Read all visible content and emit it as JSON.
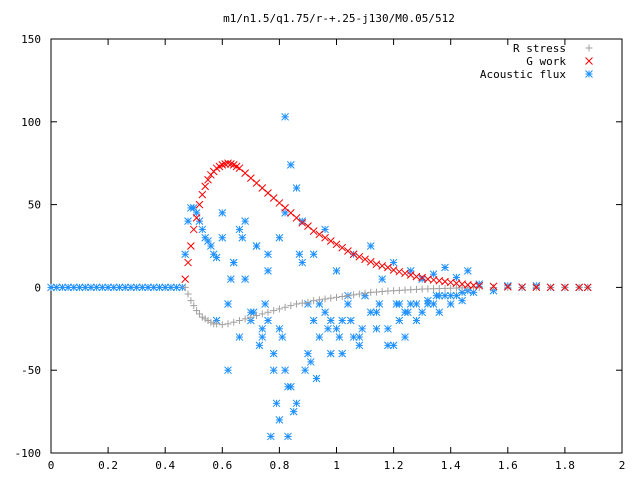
{
  "chart_data": {
    "type": "scatter",
    "title": "m1/n1.5/q1.75/r-+.25-j130/M0.05/512",
    "xlabel": "",
    "ylabel": "",
    "xlim": [
      0,
      2
    ],
    "ylim": [
      -100,
      150
    ],
    "x_ticks": [
      "0",
      "0.2",
      "0.4",
      "0.6",
      "0.8",
      "1",
      "1.2",
      "1.4",
      "1.6",
      "1.8",
      "2"
    ],
    "x_tick_values": [
      0,
      0.2,
      0.4,
      0.6,
      0.8,
      1,
      1.2,
      1.4,
      1.6,
      1.8,
      2
    ],
    "y_ticks": [
      "-100",
      "-50",
      "0",
      "50",
      "100",
      "150"
    ],
    "y_tick_values": [
      -100,
      -50,
      0,
      50,
      100,
      150
    ],
    "grid": false,
    "legend_position": "top-right",
    "series": [
      {
        "name": "R stress",
        "marker": "plus",
        "color": "#a0a0a0",
        "x": [
          0.47,
          0.48,
          0.49,
          0.5,
          0.51,
          0.52,
          0.53,
          0.54,
          0.55,
          0.56,
          0.57,
          0.58,
          0.6,
          0.62,
          0.64,
          0.66,
          0.68,
          0.7,
          0.72,
          0.74,
          0.76,
          0.78,
          0.8,
          0.82,
          0.84,
          0.86,
          0.88,
          0.9,
          0.92,
          0.94,
          0.96,
          0.98,
          1.0,
          1.02,
          1.04,
          1.06,
          1.08,
          1.1,
          1.12,
          1.14,
          1.16,
          1.18,
          1.2,
          1.22,
          1.24,
          1.26,
          1.28,
          1.3,
          1.32,
          1.34,
          1.36,
          1.38,
          1.4,
          1.42,
          1.44,
          1.46,
          1.48,
          1.5,
          1.55,
          1.6,
          1.65,
          1.7,
          1.75,
          1.8,
          1.85,
          1.88
        ],
        "y": [
          0,
          -4,
          -8,
          -11,
          -14,
          -16,
          -18,
          -19,
          -20,
          -21,
          -22,
          -22,
          -22.5,
          -22,
          -21,
          -20,
          -19,
          -18,
          -17,
          -16,
          -15,
          -14,
          -13,
          -12,
          -11,
          -10,
          -9.5,
          -9,
          -8,
          -7.5,
          -7,
          -6.5,
          -6,
          -5.5,
          -5,
          -4.5,
          -4,
          -3.5,
          -3,
          -2.8,
          -2.5,
          -2.2,
          -2,
          -1.8,
          -1.6,
          -1.4,
          -1.2,
          -1,
          -0.9,
          -0.8,
          -0.7,
          -0.6,
          -0.5,
          -0.4,
          -0.3,
          -0.25,
          -0.2,
          -0.15,
          -0.1,
          -0.05,
          0,
          0,
          0,
          0,
          0,
          0
        ]
      },
      {
        "name": "G work",
        "marker": "cross",
        "color": "#ff0000",
        "x": [
          0.47,
          0.48,
          0.49,
          0.5,
          0.51,
          0.52,
          0.53,
          0.54,
          0.55,
          0.56,
          0.57,
          0.58,
          0.59,
          0.6,
          0.61,
          0.62,
          0.63,
          0.64,
          0.65,
          0.66,
          0.68,
          0.7,
          0.72,
          0.74,
          0.76,
          0.78,
          0.8,
          0.82,
          0.84,
          0.86,
          0.88,
          0.9,
          0.92,
          0.94,
          0.96,
          0.98,
          1.0,
          1.02,
          1.04,
          1.06,
          1.08,
          1.1,
          1.12,
          1.14,
          1.16,
          1.18,
          1.2,
          1.22,
          1.24,
          1.26,
          1.28,
          1.3,
          1.32,
          1.34,
          1.36,
          1.38,
          1.4,
          1.42,
          1.44,
          1.46,
          1.48,
          1.5,
          1.55,
          1.6,
          1.65,
          1.7,
          1.75,
          1.8,
          1.85,
          1.88
        ],
        "y": [
          5,
          15,
          25,
          35,
          42,
          50,
          56,
          61,
          65,
          68,
          70,
          72,
          73,
          74,
          74.5,
          75,
          74.5,
          74,
          73,
          72,
          69,
          66,
          63,
          60,
          57,
          54,
          51,
          48,
          45,
          42,
          39,
          37,
          34,
          32,
          30,
          28,
          26,
          24,
          22,
          20,
          18.5,
          17,
          15.5,
          14,
          13,
          12,
          10.5,
          9.5,
          8.5,
          7.5,
          6.5,
          6,
          5,
          4.5,
          4,
          3.5,
          3,
          2.5,
          2,
          1.5,
          1.2,
          1,
          0.6,
          0.3,
          0.2,
          0.1,
          0,
          0,
          0,
          0
        ]
      },
      {
        "name": "Acoustic flux",
        "marker": "star",
        "color": "#1e90ff",
        "x": [
          0.0,
          0.02,
          0.04,
          0.06,
          0.08,
          0.1,
          0.12,
          0.14,
          0.16,
          0.18,
          0.2,
          0.22,
          0.24,
          0.26,
          0.28,
          0.3,
          0.32,
          0.34,
          0.36,
          0.38,
          0.4,
          0.42,
          0.44,
          0.46,
          0.47,
          0.48,
          0.49,
          0.5,
          0.51,
          0.52,
          0.53,
          0.54,
          0.55,
          0.56,
          0.57,
          0.58,
          0.6,
          0.62,
          0.64,
          0.66,
          0.68,
          0.7,
          0.72,
          0.74,
          0.76,
          0.78,
          0.8,
          0.82,
          0.84,
          0.86,
          0.88,
          0.9,
          0.92,
          0.94,
          0.96,
          0.98,
          1.0,
          1.02,
          1.04,
          1.06,
          1.08,
          1.1,
          1.12,
          1.14,
          1.16,
          1.18,
          1.2,
          1.22,
          1.24,
          1.26,
          1.28,
          1.3,
          1.32,
          1.34,
          1.36,
          1.38,
          1.4,
          1.42,
          1.44,
          1.46,
          1.48,
          1.5,
          1.55,
          1.6,
          1.65,
          1.7,
          1.75,
          1.8,
          1.85,
          1.88,
          0.82,
          0.86,
          0.83,
          0.79,
          0.8,
          0.76,
          0.84,
          0.85,
          0.77,
          0.81,
          0.62,
          0.64,
          0.66,
          0.7,
          0.72,
          0.74,
          0.78,
          0.88,
          0.9,
          0.92,
          0.96,
          1.0,
          1.04,
          1.08,
          1.12,
          1.18,
          1.22,
          1.26,
          1.3,
          1.34,
          1.38,
          1.42,
          0.58,
          0.6,
          0.68,
          0.73,
          0.75,
          0.8,
          0.82,
          0.87,
          0.91,
          0.94,
          0.98,
          1.02,
          1.06,
          1.1,
          1.14,
          1.2,
          1.24,
          1.28,
          1.32,
          1.36,
          1.4,
          1.44,
          1.46,
          0.63,
          0.67,
          0.71,
          0.76,
          0.83,
          0.89,
          0.93,
          0.97,
          1.01,
          1.05,
          1.09,
          1.15,
          1.21,
          1.25,
          1.35
        ],
        "y": [
          0,
          0,
          0,
          0,
          0,
          0,
          0,
          0,
          0,
          0,
          0,
          0,
          0,
          0,
          0,
          0,
          0,
          0,
          0,
          0,
          0,
          0,
          0,
          0,
          20,
          40,
          48,
          48,
          45,
          40,
          35,
          30,
          28,
          25,
          20,
          18,
          30,
          -10,
          15,
          35,
          40,
          -20,
          25,
          -30,
          10,
          -40,
          30,
          45,
          74,
          60,
          40,
          -10,
          20,
          -30,
          35,
          -20,
          10,
          -40,
          -10,
          20,
          -35,
          -5,
          25,
          -15,
          5,
          -25,
          15,
          -10,
          -30,
          10,
          -20,
          5,
          -10,
          8,
          -15,
          12,
          -5,
          6,
          -8,
          10,
          -3,
          2,
          -2,
          1,
          0,
          1,
          0,
          0,
          0,
          0,
          103,
          -70,
          -90,
          -70,
          -80,
          -20,
          -60,
          -75,
          -90,
          -30,
          -50,
          15,
          -30,
          -15,
          25,
          -25,
          -50,
          15,
          -40,
          -20,
          -15,
          -25,
          -5,
          -30,
          -15,
          -35,
          -20,
          -10,
          -15,
          -10,
          -5,
          -5,
          -20,
          45,
          5,
          -35,
          -10,
          -25,
          -50,
          20,
          -45,
          -10,
          -40,
          -20,
          -30,
          -5,
          -25,
          -35,
          -15,
          -10,
          -8,
          -5,
          -10,
          -3,
          -2,
          5,
          30,
          -15,
          20,
          -60,
          -50,
          -55,
          -25,
          -30,
          -20,
          -25,
          -10,
          -10,
          -15,
          -5
        ]
      }
    ]
  }
}
